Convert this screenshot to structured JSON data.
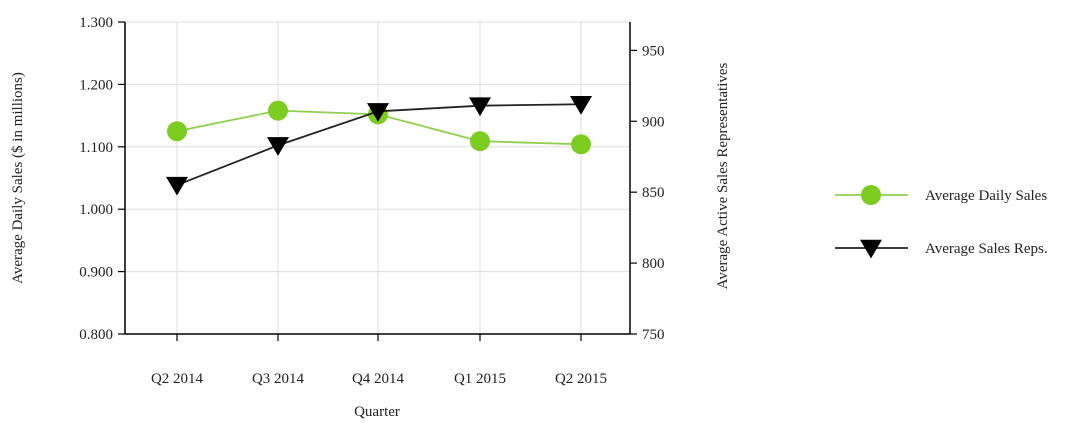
{
  "chart_data": {
    "type": "line",
    "categories": [
      "Q2 2014",
      "Q3 2014",
      "Q4 2014",
      "Q1 2015",
      "Q2 2015"
    ],
    "xlabel": "Quarter",
    "y_left": {
      "label": "Average Daily Sales ($ in millions)",
      "range": [
        0.8,
        1.3
      ],
      "ticks": [
        "0.800",
        "0.900",
        "1.000",
        "1.100",
        "1.200",
        "1.300"
      ]
    },
    "y_right": {
      "label": "Average Active Sales Representatives",
      "range": [
        750,
        970
      ],
      "ticks": [
        "750",
        "800",
        "850",
        "900",
        "950"
      ]
    },
    "series": [
      {
        "name": "Average Daily Sales",
        "axis": "left",
        "color": "#7ccd1f",
        "line_color": "#8fd14f",
        "marker": "circle",
        "values": [
          1.125,
          1.158,
          1.152,
          1.109,
          1.104
        ]
      },
      {
        "name": "Average Sales Reps.",
        "axis": "right",
        "color": "#000000",
        "line_color": "#222222",
        "marker": "triangle-down",
        "values": [
          855,
          883,
          907,
          911,
          912
        ]
      }
    ],
    "grid": true,
    "legend_position": "right"
  }
}
